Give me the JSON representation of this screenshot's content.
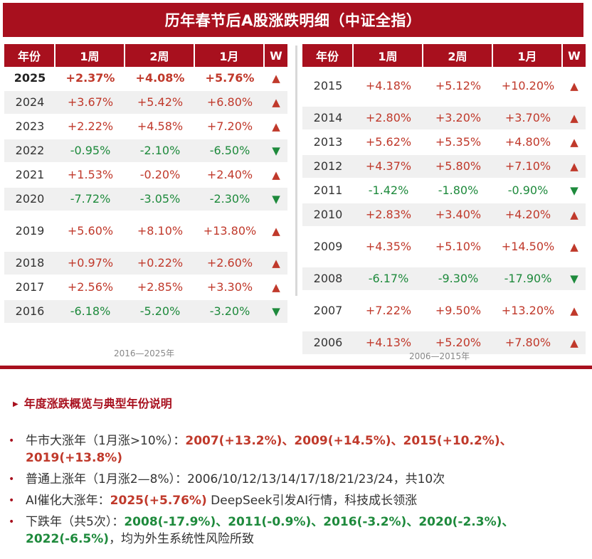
{
  "title": "历年春节后A股涨跌明细（中证全指）",
  "headers": [
    "年份",
    "1周",
    "2周",
    "1月",
    "W"
  ],
  "left_table": {
    "caption": "2016—2025年",
    "rows": [
      {
        "year": "2025",
        "w1": "+2.37%",
        "w2": "+4.08%",
        "m1": "+5.76%",
        "trend": "up",
        "bold": true
      },
      {
        "year": "2024",
        "w1": "+3.67%",
        "w2": "+5.42%",
        "m1": "+6.80%",
        "trend": "up"
      },
      {
        "year": "2023",
        "w1": "+2.22%",
        "w2": "+4.58%",
        "m1": "+7.20%",
        "trend": "up"
      },
      {
        "year": "2022",
        "w1": "-0.95%",
        "w2": "-2.10%",
        "m1": "-6.50%",
        "trend": "down"
      },
      {
        "year": "2021",
        "w1": "+1.53%",
        "w2": "-0.20%",
        "m1": "+2.40%",
        "trend": "up"
      },
      {
        "year": "2020",
        "w1": "-7.72%",
        "w2": "-3.05%",
        "m1": "-2.30%",
        "trend": "down"
      },
      {
        "year": "2019",
        "w1": "+5.60%",
        "w2": "+8.10%",
        "m1": "+13.80%",
        "trend": "up",
        "tall": true
      },
      {
        "year": "2018",
        "w1": "+0.97%",
        "w2": "+0.22%",
        "m1": "+2.60%",
        "trend": "up"
      },
      {
        "year": "2017",
        "w1": "+2.56%",
        "w2": "+2.85%",
        "m1": "+3.30%",
        "trend": "up"
      },
      {
        "year": "2016",
        "w1": "-6.18%",
        "w2": "-5.20%",
        "m1": "-3.20%",
        "trend": "down"
      }
    ]
  },
  "right_table": {
    "caption": "2006—2015年",
    "rows": [
      {
        "year": "2015",
        "w1": "+4.18%",
        "w2": "+5.12%",
        "m1": "+10.20%",
        "trend": "up",
        "tall": true
      },
      {
        "year": "2014",
        "w1": "+2.80%",
        "w2": "+3.20%",
        "m1": "+3.70%",
        "trend": "up"
      },
      {
        "year": "2013",
        "w1": "+5.62%",
        "w2": "+5.35%",
        "m1": "+4.80%",
        "trend": "up"
      },
      {
        "year": "2012",
        "w1": "+4.37%",
        "w2": "+5.80%",
        "m1": "+7.10%",
        "trend": "up"
      },
      {
        "year": "2011",
        "w1": "-1.42%",
        "w2": "-1.80%",
        "m1": "-0.90%",
        "trend": "down"
      },
      {
        "year": "2010",
        "w1": "+2.83%",
        "w2": "+3.40%",
        "m1": "+4.20%",
        "trend": "up"
      },
      {
        "year": "2009",
        "w1": "+4.35%",
        "w2": "+5.10%",
        "m1": "+14.50%",
        "trend": "up",
        "tall": true
      },
      {
        "year": "2008",
        "w1": "-6.17%",
        "w2": "-9.30%",
        "m1": "-17.90%",
        "trend": "down"
      },
      {
        "year": "2007",
        "w1": "+7.22%",
        "w2": "+9.50%",
        "m1": "+13.20%",
        "trend": "up",
        "tall": true
      },
      {
        "year": "2006",
        "w1": "+4.13%",
        "w2": "+5.20%",
        "m1": "+7.80%",
        "trend": "up"
      }
    ]
  },
  "trend_symbols": {
    "up": "▲",
    "down": "▼"
  },
  "summary": {
    "title": "年度涨跌概览与典型年份说明",
    "items": [
      {
        "label": "牛市大涨年（1月涨>10%）：",
        "highlight": "2007(+13.2%)、2009(+14.5%)、2015(+10.2%)、2019(+13.8%)",
        "color": "red",
        "rest": ""
      },
      {
        "label": "普通上涨年（1月涨2—8%）：2006/10/12/13/14/17/18/21/23/24，共10次",
        "highlight": "",
        "color": "red",
        "rest": ""
      },
      {
        "label": "AI催化大涨年：",
        "highlight": "2025(+5.76%)",
        "color": "red",
        "rest": " DeepSeek引发AI行情，科技成长领涨"
      },
      {
        "label": "下跌年（共5次）：",
        "highlight": "2008(-17.9%)、2011(-0.9%)、2016(-3.2%)、2020(-2.3%)、2022(-6.5%)",
        "color": "green",
        "rest": "，均为外生系统性风险所致"
      }
    ]
  },
  "colors": {
    "brand": "#a8101e",
    "up": "#c0392b",
    "down": "#1e8a3c"
  }
}
